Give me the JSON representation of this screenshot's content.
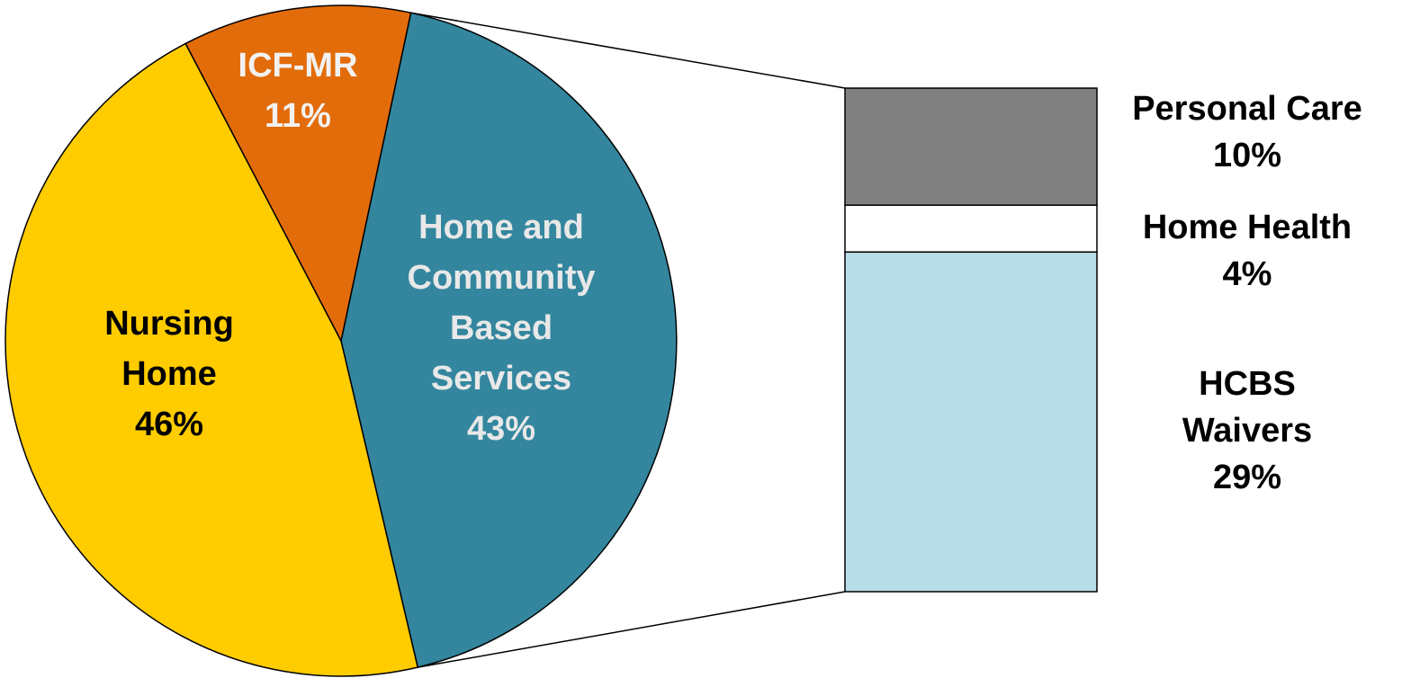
{
  "chart_data": {
    "type": "pie",
    "title": "",
    "slices": [
      {
        "label_lines": [
          "Home and",
          "Community",
          "Based",
          "Services"
        ],
        "value_label": "43%",
        "value": 43,
        "color": "#33869E",
        "text_color": "#E8E8E8"
      },
      {
        "label_lines": [
          "Nursing",
          "Home"
        ],
        "value_label": "46%",
        "value": 46,
        "color": "#FFCC00",
        "text_color": "#000000"
      },
      {
        "label_lines": [
          "ICF-MR"
        ],
        "value_label": "11%",
        "value": 11,
        "color": "#E36C0A",
        "text_color": "#F2F2F2"
      }
    ],
    "breakdown": {
      "parent_slice": "Home and Community Based Services",
      "segments": [
        {
          "label_lines": [
            "Personal Care"
          ],
          "value_label": "10%",
          "value": 10,
          "color": "#808080"
        },
        {
          "label_lines": [
            "Home Health"
          ],
          "value_label": "4%",
          "value": 4,
          "color": "#FFFFFF"
        },
        {
          "label_lines": [
            "HCBS",
            "Waivers"
          ],
          "value_label": "29%",
          "value": 29,
          "color": "#B7DDE8"
        }
      ]
    }
  }
}
